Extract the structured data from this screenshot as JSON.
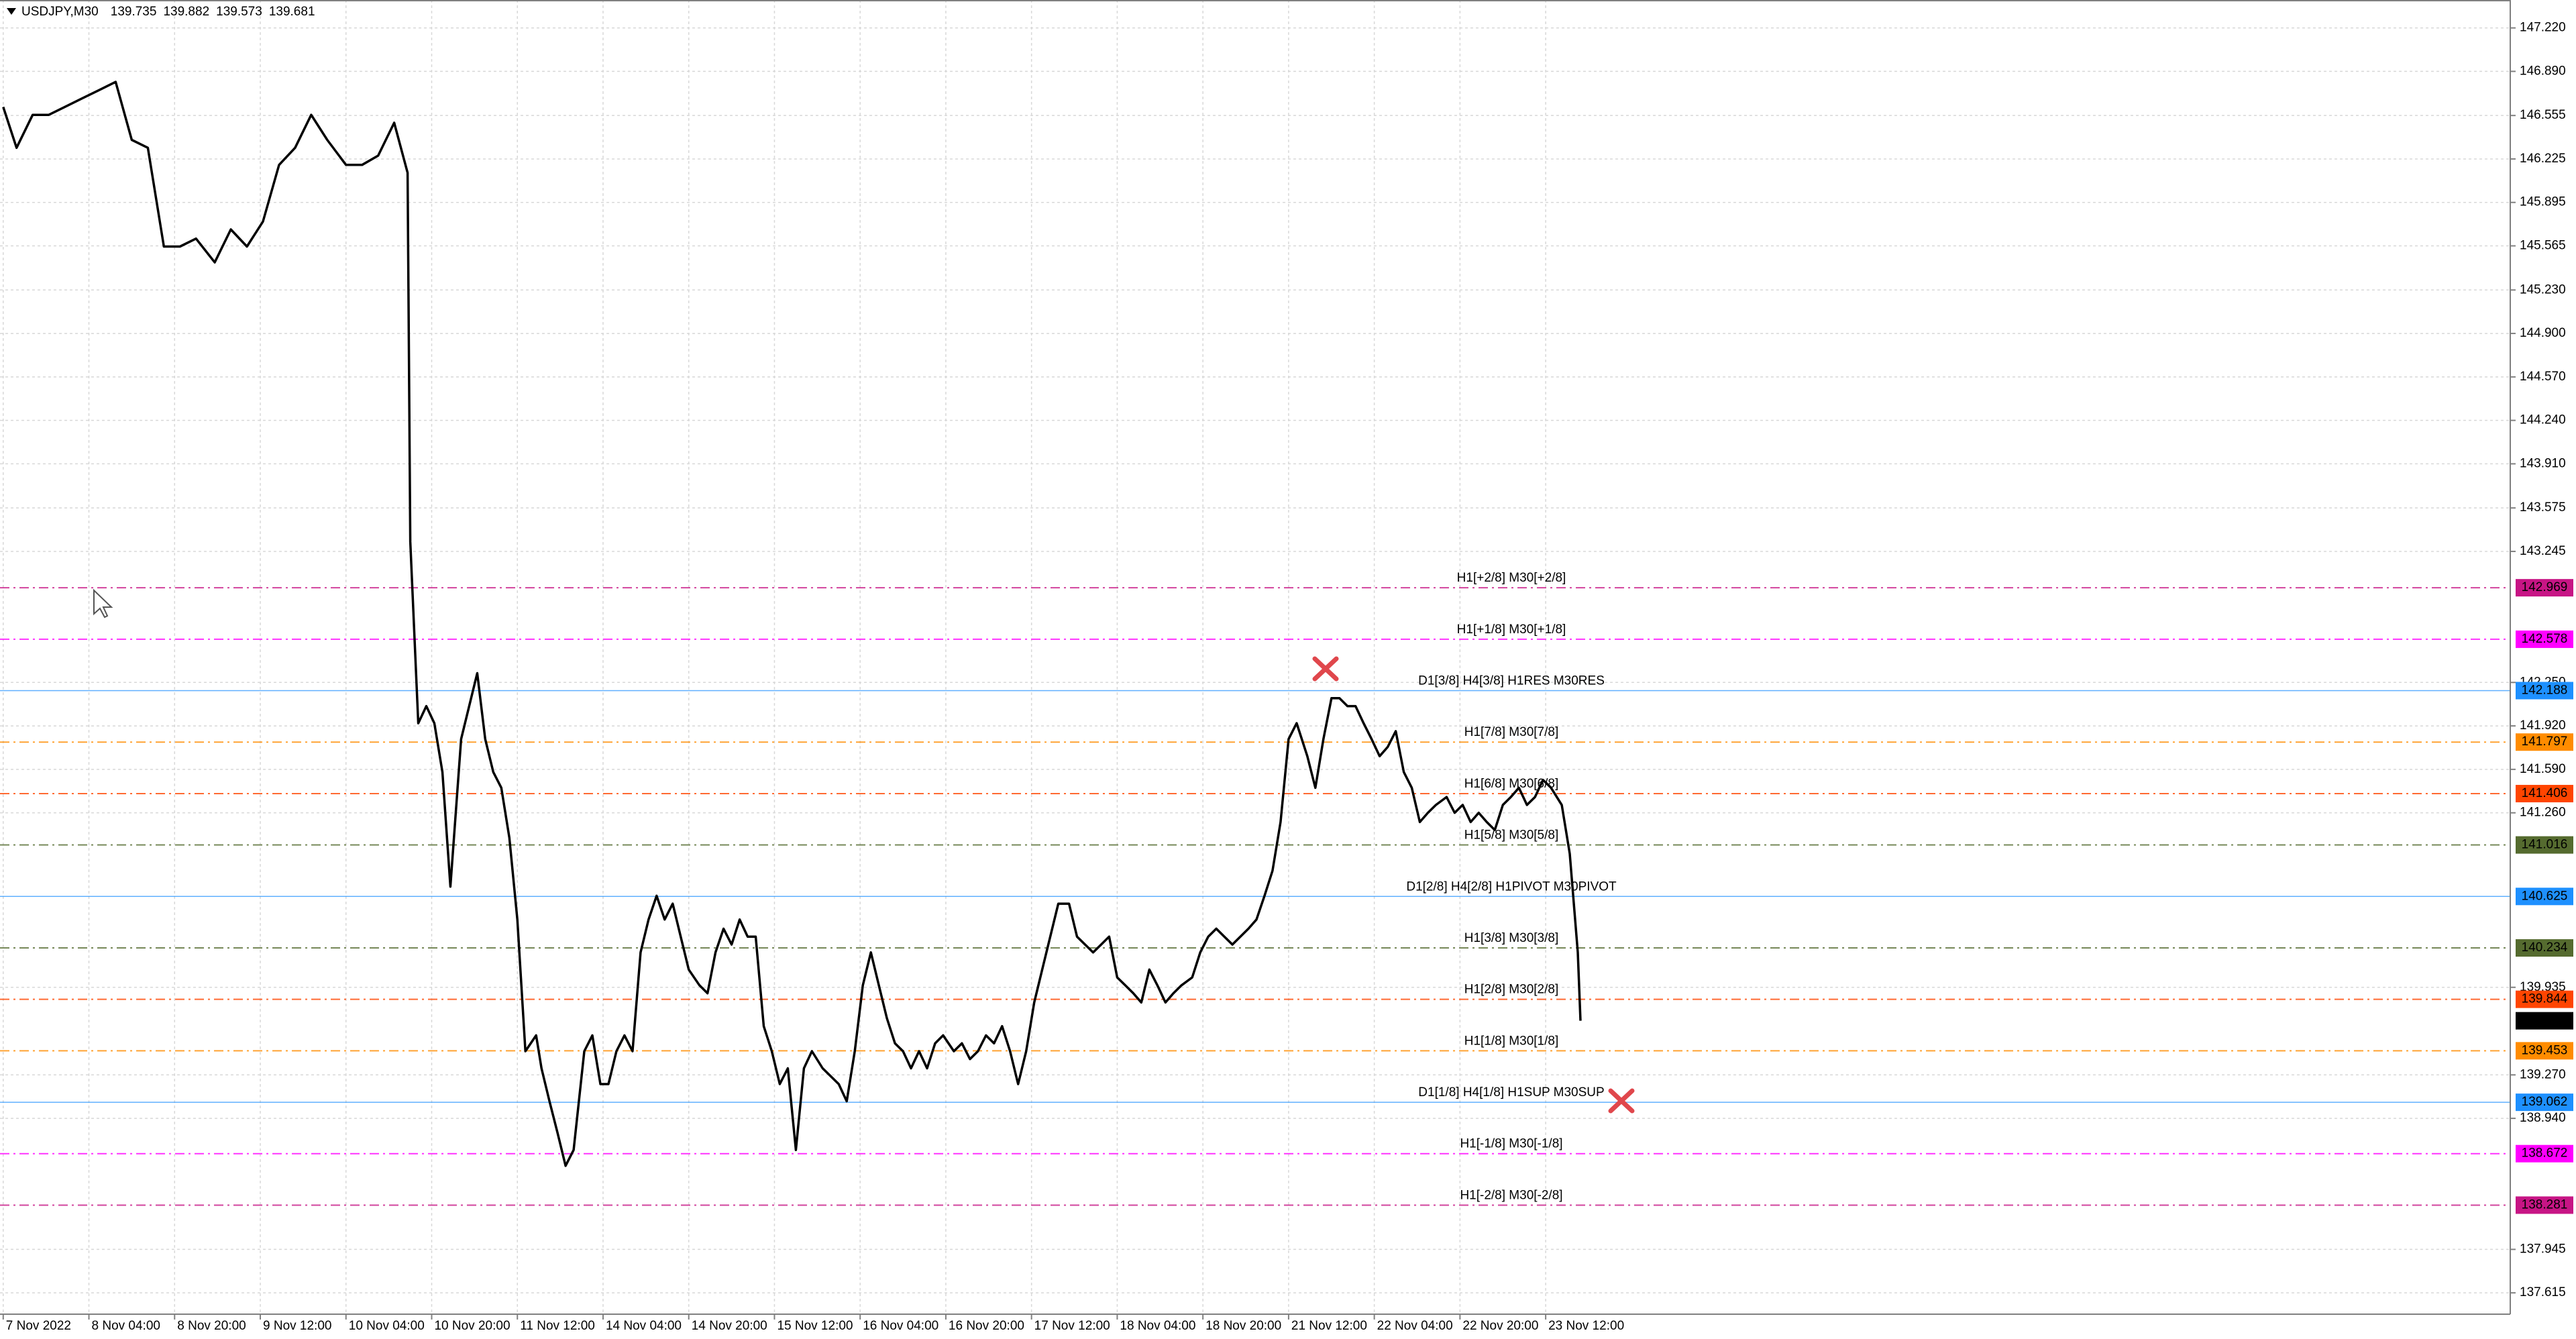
{
  "chart_data": {
    "type": "line",
    "title": "USDJPY,M30",
    "ohlc": {
      "open": 139.735,
      "high": 139.882,
      "low": 139.573,
      "close": 139.681
    },
    "grid": true,
    "xlim": [
      -1.2,
      936.2
    ],
    "xticks": [
      {
        "value": 0,
        "label": "7 Nov 2022"
      },
      {
        "value": 32,
        "label": "8 Nov 04:00"
      },
      {
        "value": 64,
        "label": "8 Nov 20:00"
      },
      {
        "value": 96,
        "label": "9 Nov 12:00"
      },
      {
        "value": 128,
        "label": "10 Nov 04:00"
      },
      {
        "value": 160,
        "label": "10 Nov 20:00"
      },
      {
        "value": 192,
        "label": "11 Nov 12:00"
      },
      {
        "value": 224,
        "label": "14 Nov 04:00"
      },
      {
        "value": 256,
        "label": "14 Nov 20:00"
      },
      {
        "value": 288,
        "label": "15 Nov 12:00"
      },
      {
        "value": 320,
        "label": "16 Nov 04:00"
      },
      {
        "value": 352,
        "label": "16 Nov 20:00"
      },
      {
        "value": 384,
        "label": "17 Nov 12:00"
      },
      {
        "value": 416,
        "label": "18 Nov 04:00"
      },
      {
        "value": 448,
        "label": "18 Nov 20:00"
      },
      {
        "value": 480,
        "label": "21 Nov 12:00"
      },
      {
        "value": 512,
        "label": "22 Nov 04:00"
      },
      {
        "value": 544,
        "label": "22 Nov 20:00"
      },
      {
        "value": 576,
        "label": "23 Nov 12:00"
      }
    ],
    "ylim": [
      137.453,
      147.432
    ],
    "yticks": [
      {
        "value": 147.22,
        "label": "147.220"
      },
      {
        "value": 146.89,
        "label": "146.890"
      },
      146.555,
      146.225,
      145.895,
      145.565,
      {
        "value": 145.23,
        "label": "145.230"
      },
      {
        "value": 144.9,
        "label": "144.900"
      },
      {
        "value": 144.57,
        "label": "144.570"
      },
      {
        "value": 144.24,
        "label": "144.240"
      },
      {
        "value": 143.91,
        "label": "143.910"
      },
      143.575,
      143.245,
      {
        "value": 142.25,
        "label": "142.250"
      },
      {
        "value": 141.92,
        "label": "141.920"
      },
      {
        "value": 141.59,
        "label": "141.590"
      },
      {
        "value": 141.26,
        "label": "141.260"
      },
      139.935,
      {
        "value": 139.27,
        "label": "139.270"
      },
      {
        "value": 138.94,
        "label": "138.940"
      },
      137.945,
      137.615
    ],
    "x": [
      0,
      5,
      11,
      17,
      23,
      29,
      36,
      42,
      48,
      54,
      60,
      66,
      72,
      79,
      85,
      91,
      97,
      103,
      109,
      115,
      121,
      128,
      134,
      140,
      146,
      151,
      152,
      155,
      158,
      161,
      164,
      167,
      171,
      174,
      177,
      180,
      183,
      186,
      189,
      192,
      195,
      199,
      201,
      204,
      207,
      210,
      213,
      217,
      220,
      223,
      226,
      229,
      232,
      235,
      238,
      241,
      244,
      247,
      250,
      253,
      256,
      260,
      263,
      266,
      269,
      272,
      275,
      278,
      281,
      284,
      287,
      290,
      293,
      296,
      299,
      302,
      306,
      309,
      312,
      315,
      318,
      321,
      324,
      327,
      330,
      333,
      336,
      339,
      342,
      345,
      348,
      351,
      355,
      358,
      361,
      364,
      367,
      370,
      373,
      376,
      379,
      382,
      385,
      388,
      391,
      394,
      398,
      401,
      404,
      407,
      410,
      413,
      416,
      419,
      422,
      425,
      428,
      431,
      434,
      437,
      440,
      444,
      447,
      450,
      453,
      456,
      459,
      462,
      465,
      468,
      471,
      474,
      477,
      480,
      483,
      487,
      490,
      493,
      496,
      499,
      502,
      505,
      508,
      511,
      514,
      517,
      520,
      523,
      526,
      529,
      532,
      535,
      539,
      542,
      545,
      548,
      551,
      554,
      557,
      560,
      563,
      566,
      569,
      572,
      575,
      578,
      582,
      585,
      588,
      589
    ],
    "series": [
      {
        "color": "#000000",
        "values": [
          146.62,
          146.31,
          146.56,
          146.56,
          146.62,
          146.68,
          146.75,
          146.81,
          146.37,
          146.31,
          145.56,
          145.56,
          145.62,
          145.44,
          145.69,
          145.56,
          145.75,
          146.18,
          146.31,
          146.56,
          146.37,
          146.18,
          146.18,
          146.25,
          146.5,
          146.12,
          143.32,
          141.94,
          142.07,
          141.94,
          141.57,
          140.7,
          141.82,
          142.07,
          142.32,
          141.82,
          141.57,
          141.45,
          141.07,
          140.45,
          139.45,
          139.57,
          139.32,
          139.07,
          138.83,
          138.58,
          138.7,
          139.45,
          139.57,
          139.2,
          139.2,
          139.45,
          139.57,
          139.45,
          140.2,
          140.45,
          140.63,
          140.45,
          140.57,
          140.32,
          140.07,
          139.95,
          139.89,
          140.2,
          140.38,
          140.26,
          140.45,
          140.32,
          140.32,
          139.64,
          139.45,
          139.2,
          139.32,
          138.7,
          139.32,
          139.45,
          139.32,
          139.26,
          139.2,
          139.07,
          139.45,
          139.95,
          140.2,
          139.95,
          139.7,
          139.51,
          139.45,
          139.32,
          139.45,
          139.32,
          139.51,
          139.57,
          139.45,
          139.51,
          139.39,
          139.45,
          139.57,
          139.51,
          139.64,
          139.45,
          139.2,
          139.45,
          139.82,
          140.07,
          140.32,
          140.57,
          140.57,
          140.32,
          140.26,
          140.2,
          140.26,
          140.32,
          140.01,
          139.95,
          139.89,
          139.82,
          140.07,
          139.95,
          139.82,
          139.89,
          139.95,
          140.01,
          140.2,
          140.32,
          140.38,
          140.32,
          140.26,
          140.32,
          140.38,
          140.45,
          140.63,
          140.82,
          141.19,
          141.82,
          141.94,
          141.69,
          141.45,
          141.82,
          142.13,
          142.13,
          142.07,
          142.07,
          141.94,
          141.82,
          141.69,
          141.76,
          141.88,
          141.57,
          141.45,
          141.19,
          141.26,
          141.32,
          141.38,
          141.26,
          141.32,
          141.19,
          141.26,
          141.19,
          141.13,
          141.32,
          141.38,
          141.45,
          141.32,
          141.38,
          141.51,
          141.45,
          141.32,
          140.95,
          140.2,
          139.681
        ]
      }
    ],
    "current_price": {
      "value": 139.681,
      "color": "#000000"
    },
    "levels": [
      {
        "label": "H1[+2/8] M30[+2/8]",
        "price": 142.969,
        "color": "#c71585",
        "style": "dashdot"
      },
      {
        "label": "H1[+1/8] M30[+1/8]",
        "price": 142.578,
        "color": "#ff00ff",
        "style": "dashdot"
      },
      {
        "label": "D1[3/8] H4[3/8] H1RES M30RES",
        "price": 142.188,
        "color": "#1e90ff",
        "style": "solid"
      },
      {
        "label": "H1[7/8] M30[7/8]",
        "price": 141.797,
        "color": "#ff8c00",
        "style": "dashdot"
      },
      {
        "label": "H1[6/8] M30[6/8]",
        "price": 141.406,
        "color": "#ff4500",
        "style": "dashdot"
      },
      {
        "label": "H1[5/8] M30[5/8]",
        "price": 141.016,
        "color": "#556b2f",
        "style": "dashdot"
      },
      {
        "label": "D1[2/8] H4[2/8] H1PIVOT M30PIVOT",
        "price": 140.625,
        "color": "#1e90ff",
        "style": "solid"
      },
      {
        "label": "H1[3/8] M30[3/8]",
        "price": 140.234,
        "color": "#556b2f",
        "style": "dashdot"
      },
      {
        "label": "H1[2/8] M30[2/8]",
        "price": 139.844,
        "color": "#ff4500",
        "style": "dashdot"
      },
      {
        "label": "H1[1/8] M30[1/8]",
        "price": 139.453,
        "color": "#ff8c00",
        "style": "dashdot"
      },
      {
        "label": "D1[1/8] H4[1/8] H1SUP M30SUP",
        "price": 139.062,
        "color": "#1e90ff",
        "style": "solid"
      },
      {
        "label": "H1[-1/8] M30[-1/8]",
        "price": 138.672,
        "color": "#ff00ff",
        "style": "dashdot"
      },
      {
        "label": "H1[-2/8] M30[-2/8]",
        "price": 138.281,
        "color": "#c71585",
        "style": "dashdot"
      }
    ]
  }
}
